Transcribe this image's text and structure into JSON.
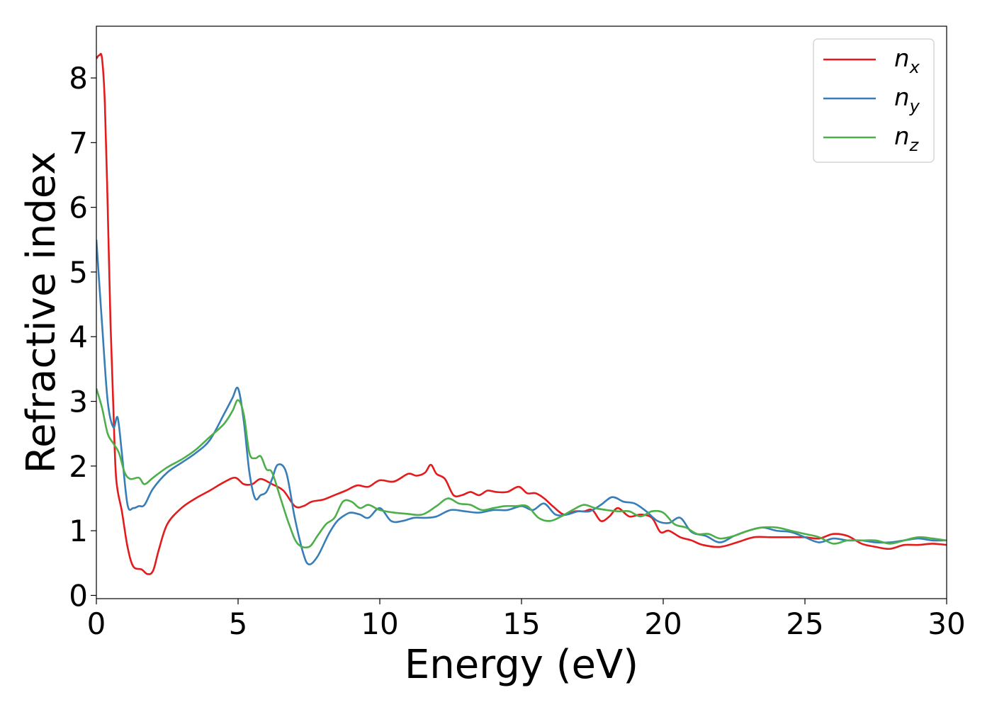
{
  "chart_data": {
    "type": "line",
    "xlabel": "Energy (eV)",
    "ylabel": "Refractive index",
    "xlim": [
      0,
      30
    ],
    "ylim": [
      -0.05,
      8.8
    ],
    "xticks": [
      "0",
      "5",
      "10",
      "15",
      "20",
      "25",
      "30"
    ],
    "yticks": [
      "0",
      "1",
      "2",
      "3",
      "4",
      "5",
      "6",
      "7",
      "8"
    ],
    "grid": false,
    "legend_position": "top-right",
    "series": [
      {
        "name": "n_x",
        "label_main": "n",
        "label_sub": "x",
        "color": "#e41a1c",
        "x": [
          0,
          0.1,
          0.2,
          0.3,
          0.4,
          0.5,
          0.6,
          0.7,
          0.9,
          1.1,
          1.3,
          1.6,
          1.8,
          2.0,
          2.2,
          2.5,
          3.0,
          3.5,
          4.0,
          4.5,
          4.9,
          5.2,
          5.5,
          5.8,
          6.2,
          6.6,
          7.0,
          7.3,
          7.6,
          8.0,
          8.4,
          8.8,
          9.2,
          9.6,
          10.0,
          10.5,
          11.0,
          11.3,
          11.6,
          11.8,
          12.0,
          12.3,
          12.6,
          12.9,
          13.2,
          13.5,
          13.8,
          14.1,
          14.5,
          14.9,
          15.2,
          15.5,
          15.8,
          16.1,
          16.5,
          16.9,
          17.2,
          17.5,
          17.8,
          18.1,
          18.4,
          18.8,
          19.2,
          19.6,
          19.9,
          20.2,
          20.6,
          21.0,
          21.4,
          22.0,
          22.6,
          23.2,
          23.8,
          24.4,
          25.0,
          25.5,
          26.0,
          26.5,
          27.0,
          27.5,
          28.0,
          28.5,
          29.0,
          29.5,
          30.0
        ],
        "y": [
          8.3,
          8.35,
          8.3,
          7.6,
          6.0,
          4.2,
          2.9,
          1.8,
          1.3,
          0.75,
          0.45,
          0.4,
          0.33,
          0.38,
          0.7,
          1.1,
          1.35,
          1.5,
          1.62,
          1.75,
          1.82,
          1.72,
          1.72,
          1.8,
          1.72,
          1.62,
          1.38,
          1.38,
          1.45,
          1.48,
          1.55,
          1.62,
          1.7,
          1.68,
          1.78,
          1.76,
          1.88,
          1.85,
          1.9,
          2.02,
          1.88,
          1.8,
          1.55,
          1.55,
          1.6,
          1.55,
          1.62,
          1.6,
          1.6,
          1.68,
          1.58,
          1.58,
          1.5,
          1.38,
          1.25,
          1.3,
          1.3,
          1.32,
          1.15,
          1.22,
          1.35,
          1.22,
          1.25,
          1.2,
          0.98,
          1.0,
          0.9,
          0.85,
          0.78,
          0.75,
          0.82,
          0.9,
          0.9,
          0.9,
          0.9,
          0.88,
          0.95,
          0.92,
          0.8,
          0.75,
          0.72,
          0.78,
          0.78,
          0.8,
          0.78
        ]
      },
      {
        "name": "n_y",
        "label_main": "n",
        "label_sub": "y",
        "color": "#377eb8",
        "x": [
          0,
          0.2,
          0.4,
          0.6,
          0.75,
          0.9,
          1.1,
          1.3,
          1.5,
          1.7,
          2.0,
          2.5,
          3.0,
          3.5,
          4.0,
          4.5,
          4.8,
          5.0,
          5.2,
          5.4,
          5.6,
          5.8,
          6.0,
          6.2,
          6.4,
          6.7,
          7.0,
          7.3,
          7.5,
          7.8,
          8.2,
          8.5,
          8.8,
          9.0,
          9.3,
          9.6,
          10.0,
          10.4,
          10.8,
          11.2,
          11.6,
          12.0,
          12.5,
          13.0,
          13.5,
          14.0,
          14.5,
          15.0,
          15.4,
          15.8,
          16.2,
          16.6,
          17.0,
          17.4,
          17.8,
          18.2,
          18.6,
          19.0,
          19.4,
          19.8,
          20.2,
          20.6,
          21.0,
          21.5,
          22.0,
          22.5,
          23.0,
          23.5,
          24.0,
          24.5,
          25.0,
          25.5,
          26.0,
          26.5,
          27.0,
          27.5,
          28.0,
          28.5,
          29.0,
          29.5,
          30.0
        ],
        "y": [
          5.5,
          4.2,
          3.0,
          2.6,
          2.75,
          2.2,
          1.4,
          1.35,
          1.38,
          1.4,
          1.65,
          1.9,
          2.05,
          2.2,
          2.4,
          2.8,
          3.05,
          3.2,
          2.7,
          1.9,
          1.5,
          1.55,
          1.6,
          1.8,
          2.02,
          1.9,
          1.2,
          0.65,
          0.48,
          0.6,
          0.95,
          1.15,
          1.25,
          1.28,
          1.25,
          1.2,
          1.35,
          1.15,
          1.15,
          1.2,
          1.2,
          1.22,
          1.32,
          1.3,
          1.28,
          1.32,
          1.32,
          1.38,
          1.32,
          1.42,
          1.25,
          1.25,
          1.3,
          1.3,
          1.4,
          1.52,
          1.45,
          1.42,
          1.3,
          1.15,
          1.12,
          1.2,
          0.98,
          0.92,
          0.82,
          0.92,
          1.0,
          1.05,
          1.0,
          0.98,
          0.9,
          0.82,
          0.88,
          0.85,
          0.85,
          0.82,
          0.82,
          0.85,
          0.88,
          0.85,
          0.85
        ]
      },
      {
        "name": "n_z",
        "label_main": "n",
        "label_sub": "z",
        "color": "#4daf4a",
        "x": [
          0,
          0.2,
          0.4,
          0.6,
          0.8,
          1.0,
          1.2,
          1.5,
          1.7,
          2.0,
          2.5,
          3.0,
          3.5,
          4.0,
          4.5,
          4.8,
          5.0,
          5.2,
          5.4,
          5.6,
          5.8,
          6.0,
          6.2,
          6.5,
          6.8,
          7.1,
          7.5,
          7.8,
          8.1,
          8.4,
          8.7,
          9.0,
          9.3,
          9.6,
          10.0,
          10.5,
          11.0,
          11.5,
          12.0,
          12.4,
          12.8,
          13.2,
          13.6,
          14.0,
          14.4,
          14.8,
          15.2,
          15.6,
          16.0,
          16.4,
          16.8,
          17.2,
          17.6,
          18.0,
          18.4,
          18.8,
          19.2,
          19.6,
          20.0,
          20.4,
          20.8,
          21.2,
          21.6,
          22.0,
          22.5,
          23.0,
          23.5,
          24.0,
          24.5,
          25.0,
          25.5,
          26.0,
          26.5,
          27.0,
          27.5,
          28.0,
          28.5,
          29.0,
          29.5,
          30.0
        ],
        "y": [
          3.2,
          2.9,
          2.5,
          2.35,
          2.2,
          1.9,
          1.8,
          1.82,
          1.72,
          1.82,
          1.98,
          2.1,
          2.25,
          2.45,
          2.65,
          2.85,
          3.02,
          2.8,
          2.2,
          2.12,
          2.15,
          1.95,
          1.9,
          1.5,
          1.1,
          0.8,
          0.75,
          0.92,
          1.1,
          1.2,
          1.45,
          1.45,
          1.35,
          1.4,
          1.32,
          1.28,
          1.26,
          1.25,
          1.38,
          1.5,
          1.42,
          1.4,
          1.32,
          1.35,
          1.38,
          1.38,
          1.38,
          1.2,
          1.15,
          1.22,
          1.32,
          1.4,
          1.35,
          1.32,
          1.3,
          1.3,
          1.22,
          1.3,
          1.28,
          1.1,
          1.05,
          0.95,
          0.95,
          0.88,
          0.92,
          1.0,
          1.05,
          1.05,
          1.0,
          0.95,
          0.9,
          0.8,
          0.85,
          0.85,
          0.85,
          0.8,
          0.85,
          0.9,
          0.88,
          0.85
        ]
      }
    ]
  }
}
